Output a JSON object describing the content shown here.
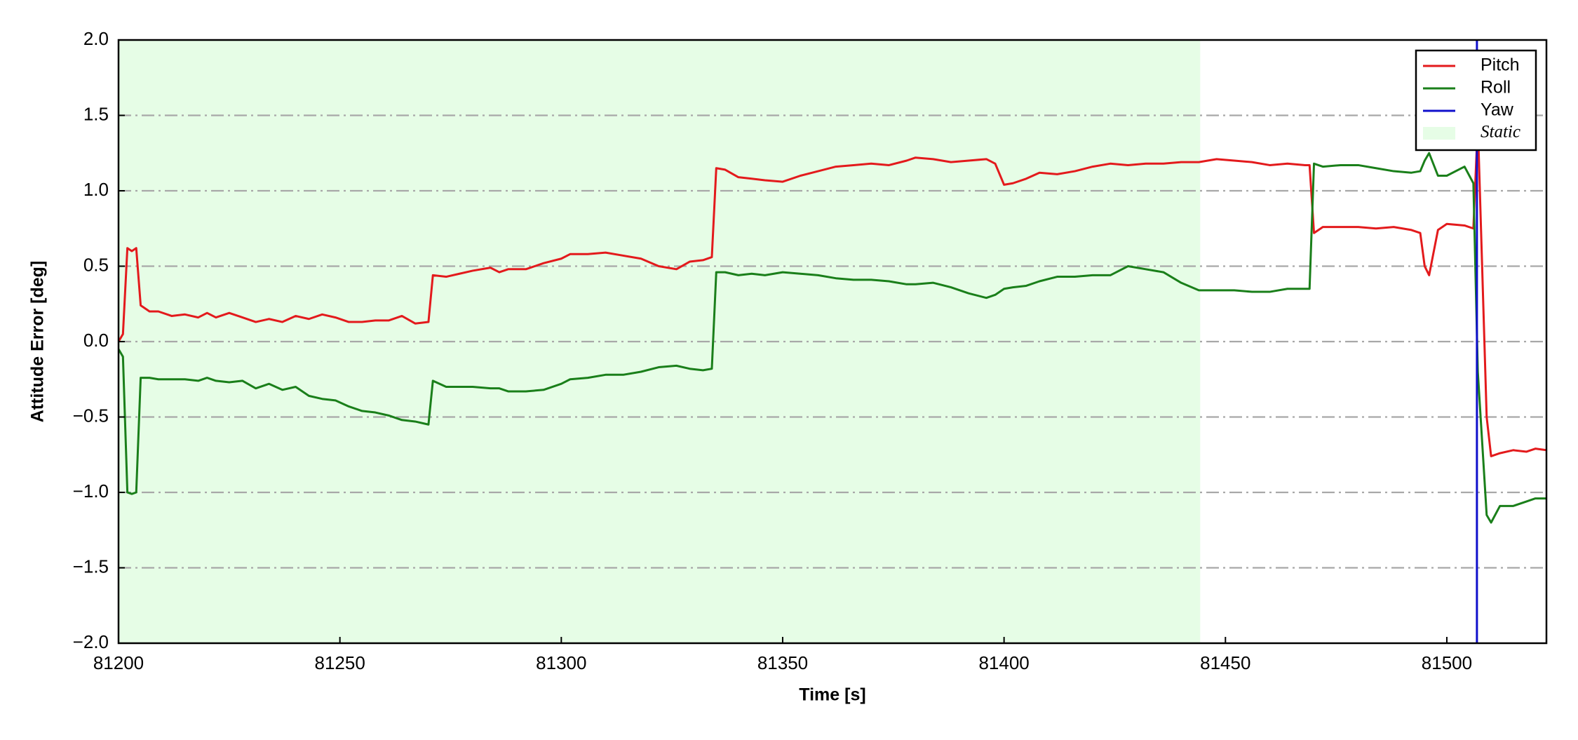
{
  "chart_data": {
    "type": "line",
    "xlabel": "Time [s]",
    "ylabel": "Attitude Error [deg]",
    "xlim": [
      81200,
      81522.5
    ],
    "ylim": [
      -2,
      2
    ],
    "xticks": [
      81200,
      81250,
      81300,
      81350,
      81400,
      81450,
      81500
    ],
    "yticks": [
      {
        "value": -2,
        "label": "−2.0"
      },
      {
        "value": -1.5,
        "label": "−1.5"
      },
      {
        "value": -1,
        "label": "−1.0"
      },
      {
        "value": -0.5,
        "label": "−0.5"
      },
      {
        "value": 0,
        "label": "0.0"
      },
      0.5,
      {
        "value": 1,
        "label": "1.0"
      },
      1.5,
      {
        "value": 2,
        "label": "2.0"
      }
    ],
    "grid": true,
    "legend": "upper right",
    "static_region": {
      "label": "Static",
      "xlim": [
        81200,
        81444.3
      ],
      "color": "#e6fde6"
    },
    "x": [
      81200,
      81201,
      81202,
      81203,
      81204,
      81205,
      81207,
      81209,
      81212,
      81215,
      81218,
      81220,
      81222,
      81225,
      81228,
      81231,
      81234,
      81237,
      81240,
      81243,
      81246,
      81249,
      81252,
      81255,
      81258,
      81261,
      81264,
      81267,
      81270,
      81271,
      81274,
      81277,
      81280,
      81284,
      81286,
      81288,
      81292,
      81296,
      81300,
      81302,
      81306,
      81310,
      81314,
      81318,
      81322,
      81326,
      81329,
      81332,
      81334,
      81335,
      81337,
      81340,
      81343,
      81346,
      81350,
      81354,
      81358,
      81362,
      81366,
      81370,
      81374,
      81378,
      81380,
      81384,
      81388,
      81392,
      81396,
      81398,
      81400,
      81402,
      81405,
      81408,
      81412,
      81416,
      81420,
      81424,
      81428,
      81432,
      81436,
      81440,
      81444,
      81448,
      81452,
      81456,
      81460,
      81464,
      81468,
      81469,
      81470,
      81472,
      81476,
      81480,
      81484,
      81488,
      81492,
      81494,
      81495,
      81496,
      81498,
      81500,
      81504,
      81506,
      81507,
      81509,
      81510,
      81512,
      81515,
      81518,
      81520,
      81522.5
    ],
    "series": [
      {
        "name": "Pitch",
        "color": "#e31a1c",
        "values": [
          0.0,
          0.05,
          0.62,
          0.6,
          0.62,
          0.24,
          0.2,
          0.2,
          0.17,
          0.18,
          0.16,
          0.19,
          0.16,
          0.19,
          0.16,
          0.13,
          0.15,
          0.13,
          0.17,
          0.15,
          0.18,
          0.16,
          0.13,
          0.13,
          0.14,
          0.14,
          0.17,
          0.12,
          0.13,
          0.44,
          0.43,
          0.45,
          0.47,
          0.49,
          0.46,
          0.48,
          0.48,
          0.52,
          0.55,
          0.58,
          0.58,
          0.59,
          0.57,
          0.55,
          0.5,
          0.48,
          0.53,
          0.54,
          0.56,
          1.15,
          1.14,
          1.09,
          1.08,
          1.07,
          1.06,
          1.1,
          1.13,
          1.16,
          1.17,
          1.18,
          1.17,
          1.2,
          1.22,
          1.21,
          1.19,
          1.2,
          1.21,
          1.18,
          1.04,
          1.05,
          1.08,
          1.12,
          1.11,
          1.13,
          1.16,
          1.18,
          1.17,
          1.18,
          1.18,
          1.19,
          1.19,
          1.21,
          1.2,
          1.19,
          1.17,
          1.18,
          1.17,
          1.17,
          0.72,
          0.76,
          0.76,
          0.76,
          0.75,
          0.76,
          0.74,
          0.72,
          0.5,
          0.44,
          0.74,
          0.78,
          0.77,
          0.75,
          1.45,
          -0.5,
          -0.76,
          -0.74,
          -0.72,
          -0.73,
          -0.71,
          -0.72
        ]
      },
      {
        "name": "Roll",
        "color": "#1a7f1a",
        "values": [
          -0.05,
          -0.1,
          -1.0,
          -1.01,
          -1.0,
          -0.24,
          -0.24,
          -0.25,
          -0.25,
          -0.25,
          -0.26,
          -0.24,
          -0.26,
          -0.27,
          -0.26,
          -0.31,
          -0.28,
          -0.32,
          -0.3,
          -0.36,
          -0.38,
          -0.39,
          -0.43,
          -0.46,
          -0.47,
          -0.49,
          -0.52,
          -0.53,
          -0.55,
          -0.26,
          -0.3,
          -0.3,
          -0.3,
          -0.31,
          -0.31,
          -0.33,
          -0.33,
          -0.32,
          -0.28,
          -0.25,
          -0.24,
          -0.22,
          -0.22,
          -0.2,
          -0.17,
          -0.16,
          -0.18,
          -0.19,
          -0.18,
          0.46,
          0.46,
          0.44,
          0.45,
          0.44,
          0.46,
          0.45,
          0.44,
          0.42,
          0.41,
          0.41,
          0.4,
          0.38,
          0.38,
          0.39,
          0.36,
          0.32,
          0.29,
          0.31,
          0.35,
          0.36,
          0.37,
          0.4,
          0.43,
          0.43,
          0.44,
          0.44,
          0.5,
          0.48,
          0.46,
          0.39,
          0.34,
          0.34,
          0.34,
          0.33,
          0.33,
          0.35,
          0.35,
          0.35,
          1.18,
          1.16,
          1.17,
          1.17,
          1.15,
          1.13,
          1.12,
          1.13,
          1.2,
          1.25,
          1.1,
          1.1,
          1.16,
          1.05,
          -0.2,
          -1.15,
          -1.2,
          -1.09,
          -1.09,
          -1.06,
          -1.04,
          -1.04
        ]
      },
      {
        "name": "Yaw",
        "color": "#1010cc",
        "x": [
          81506.8,
          81506.8
        ],
        "values": [
          -2,
          2
        ]
      }
    ]
  }
}
